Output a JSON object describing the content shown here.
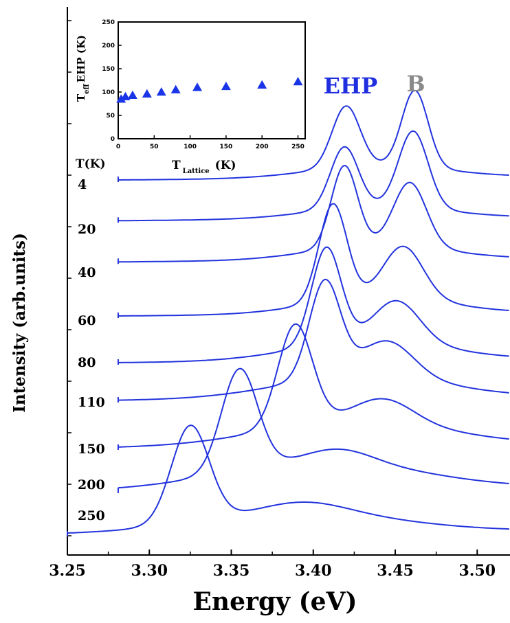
{
  "chart_data": [
    {
      "type": "line",
      "xlabel": "Energy (eV)",
      "ylabel": "Intensity (arb.units)",
      "xlim": [
        3.25,
        3.52
      ],
      "x_ticks": [
        "3.25",
        "3.30",
        "3.35",
        "3.40",
        "3.45",
        "3.50"
      ],
      "temperature_header": "T(K)",
      "peak_labels": [
        {
          "text": "EHP",
          "color": "#1f2fe0"
        },
        {
          "text": "B",
          "color": "#8a8a8a"
        }
      ],
      "line_color": "#2233dd",
      "series": [
        {
          "name": "4",
          "start": 3.281,
          "baseline": 0.0,
          "peaks": [
            {
              "c": 3.42,
              "a": 0.24,
              "w": 0.0085
            },
            {
              "c": 3.462,
              "a": 0.3,
              "w": 0.008
            }
          ],
          "background": [
            {
              "c": 3.44,
              "a": 0.05,
              "w": 0.04
            }
          ]
        },
        {
          "name": "20",
          "start": 3.281,
          "baseline": 0.01,
          "peaks": [
            {
              "c": 3.419,
              "a": 0.24,
              "w": 0.0085
            },
            {
              "c": 3.461,
              "a": 0.3,
              "w": 0.009
            }
          ],
          "background": [
            {
              "c": 3.44,
              "a": 0.05,
              "w": 0.04
            }
          ]
        },
        {
          "name": "40",
          "start": 3.281,
          "baseline": 0.01,
          "peaks": [
            {
              "c": 3.419,
              "a": 0.32,
              "w": 0.008
            },
            {
              "c": 3.459,
              "a": 0.25,
              "w": 0.01
            }
          ],
          "background": [
            {
              "c": 3.44,
              "a": 0.06,
              "w": 0.04
            }
          ]
        },
        {
          "name": "60",
          "start": 3.281,
          "baseline": 0.0,
          "peaks": [
            {
              "c": 3.412,
              "a": 0.38,
              "w": 0.0085
            },
            {
              "c": 3.455,
              "a": 0.2,
              "w": 0.012
            }
          ],
          "background": [
            {
              "c": 3.44,
              "a": 0.07,
              "w": 0.04
            }
          ]
        },
        {
          "name": "80",
          "start": 3.281,
          "baseline": 0.0,
          "peaks": [
            {
              "c": 3.408,
              "a": 0.38,
              "w": 0.009
            },
            {
              "c": 3.451,
              "a": 0.16,
              "w": 0.014
            }
          ],
          "background": [
            {
              "c": 3.435,
              "a": 0.08,
              "w": 0.045
            }
          ]
        },
        {
          "name": "110",
          "start": 3.281,
          "baseline": 0.0,
          "peaks": [
            {
              "c": 3.407,
              "a": 0.38,
              "w": 0.0095
            },
            {
              "c": 3.445,
              "a": 0.14,
              "w": 0.016
            }
          ],
          "background": [
            {
              "c": 3.43,
              "a": 0.09,
              "w": 0.05
            }
          ]
        },
        {
          "name": "150",
          "start": 3.281,
          "baseline": 0.0,
          "peaks": [
            {
              "c": 3.389,
              "a": 0.4,
              "w": 0.0105
            },
            {
              "c": 3.443,
              "a": 0.09,
              "w": 0.018
            }
          ],
          "background": [
            {
              "c": 3.425,
              "a": 0.1,
              "w": 0.055
            }
          ]
        },
        {
          "name": "200",
          "start": 3.281,
          "baseline": 0.0,
          "peaks": [
            {
              "c": 3.355,
              "a": 0.4,
              "w": 0.011
            },
            {
              "c": 3.416,
              "a": 0.05,
              "w": 0.02
            }
          ],
          "background": [
            {
              "c": 3.405,
              "a": 0.11,
              "w": 0.06
            }
          ]
        },
        {
          "name": "250",
          "start": 3.25,
          "baseline": 0.0,
          "peaks": [
            {
              "c": 3.325,
              "a": 0.38,
              "w": 0.0115
            },
            {
              "c": 3.395,
              "a": 0.04,
              "w": 0.025
            }
          ],
          "background": [
            {
              "c": 3.39,
              "a": 0.08,
              "w": 0.06
            }
          ]
        }
      ]
    },
    {
      "type": "scatter",
      "xlabel": "T Lattice (K)",
      "xlabel_main": "T",
      "xlabel_sub": "Lattice",
      "xlabel_unit": "(K)",
      "ylabel_main": "T",
      "ylabel_sub": "eff",
      "ylabel_rest": "EHP (K)",
      "xlim": [
        0,
        260
      ],
      "ylim": [
        0,
        250
      ],
      "x_ticks": [
        "0",
        "50",
        "100",
        "150",
        "200",
        "250"
      ],
      "y_ticks": [
        "0",
        "50",
        "100",
        "150",
        "200",
        "250"
      ],
      "marker": "triangle",
      "marker_color": "#1a35e8",
      "series": [
        {
          "x": [
            4,
            10,
            20,
            40,
            60,
            80,
            110,
            150,
            200,
            250
          ],
          "y": [
            85,
            90,
            93,
            96,
            100,
            105,
            110,
            112,
            115,
            122
          ]
        }
      ]
    }
  ]
}
